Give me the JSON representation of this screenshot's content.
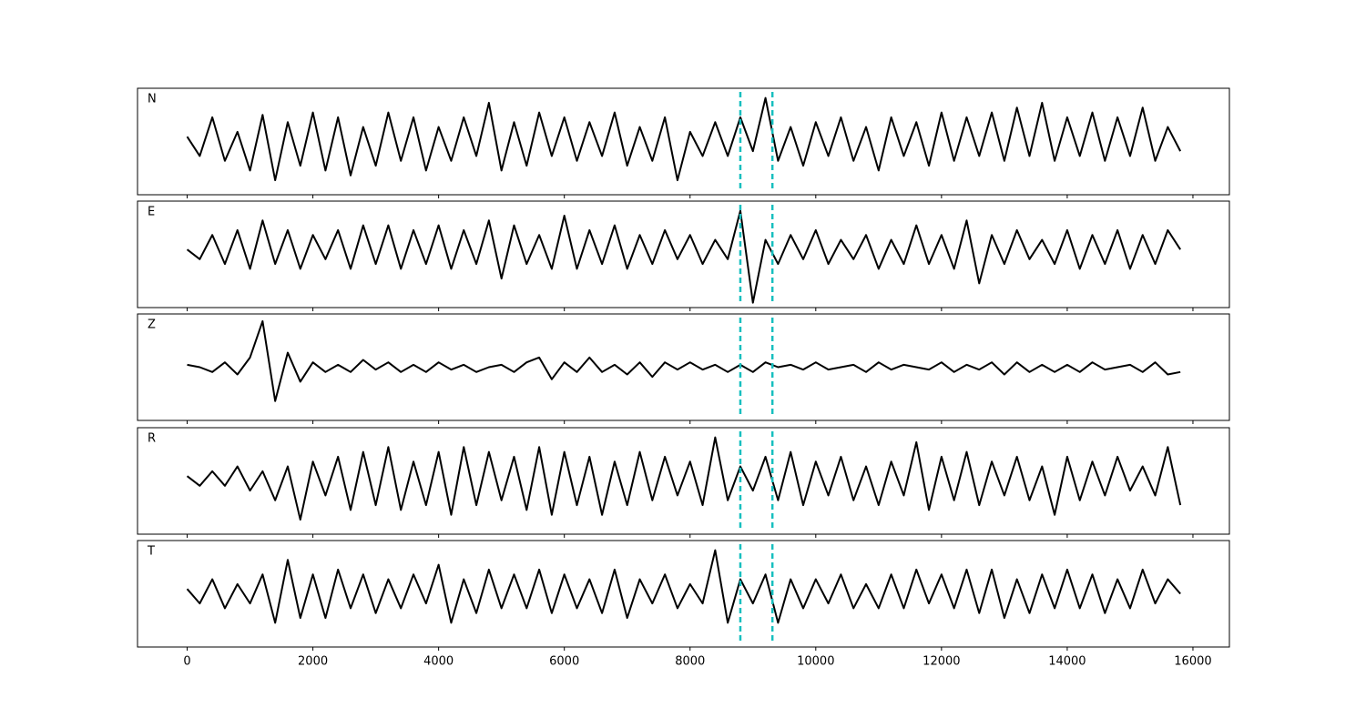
{
  "chart_data": [
    {
      "type": "line",
      "label": "N",
      "color": "#000000",
      "xlim": [
        -790,
        16580
      ],
      "ylim": [
        -1.1,
        1.1
      ],
      "vlines": [
        8800,
        9310
      ],
      "vline_color": "#17bfbf",
      "x": [
        0,
        200,
        400,
        600,
        800,
        1000,
        1200,
        1400,
        1600,
        1800,
        2000,
        2200,
        2400,
        2600,
        2800,
        3000,
        3200,
        3400,
        3600,
        3800,
        4000,
        4200,
        4400,
        4600,
        4800,
        5000,
        5200,
        5400,
        5600,
        5800,
        6000,
        6200,
        6400,
        6600,
        6800,
        7000,
        7200,
        7400,
        7600,
        7800,
        8000,
        8200,
        8400,
        8600,
        8800,
        9000,
        9200,
        9400,
        9600,
        9800,
        10000,
        10200,
        10400,
        10600,
        10800,
        11000,
        11200,
        11400,
        11600,
        11800,
        12000,
        12200,
        12400,
        12600,
        12800,
        13000,
        13200,
        13400,
        13600,
        13800,
        14000,
        14200,
        14400,
        14600,
        14800,
        15000,
        15200,
        15400,
        15600,
        15800
      ],
      "values": [
        0.1,
        -0.3,
        0.5,
        -0.4,
        0.2,
        -0.6,
        0.55,
        -0.8,
        0.4,
        -0.5,
        0.6,
        -0.6,
        0.5,
        -0.7,
        0.3,
        -0.5,
        0.6,
        -0.4,
        0.5,
        -0.6,
        0.3,
        -0.4,
        0.5,
        -0.3,
        0.8,
        -0.6,
        0.4,
        -0.5,
        0.6,
        -0.3,
        0.5,
        -0.4,
        0.4,
        -0.3,
        0.6,
        -0.5,
        0.3,
        -0.4,
        0.5,
        -0.8,
        0.2,
        -0.3,
        0.4,
        -0.3,
        0.5,
        -0.2,
        0.9,
        -0.4,
        0.3,
        -0.5,
        0.4,
        -0.3,
        0.5,
        -0.4,
        0.3,
        -0.6,
        0.5,
        -0.3,
        0.4,
        -0.5,
        0.6,
        -0.4,
        0.5,
        -0.3,
        0.6,
        -0.4,
        0.7,
        -0.3,
        0.8,
        -0.4,
        0.5,
        -0.3,
        0.6,
        -0.4,
        0.5,
        -0.3,
        0.7,
        -0.4,
        0.3,
        -0.2
      ]
    },
    {
      "type": "line",
      "label": "E",
      "color": "#000000",
      "xlim": [
        -790,
        16580
      ],
      "ylim": [
        -1.1,
        1.1
      ],
      "vlines": [
        8800,
        9310
      ],
      "vline_color": "#17bfbf",
      "x": [
        0,
        200,
        400,
        600,
        800,
        1000,
        1200,
        1400,
        1600,
        1800,
        2000,
        2200,
        2400,
        2600,
        2800,
        3000,
        3200,
        3400,
        3600,
        3800,
        4000,
        4200,
        4400,
        4600,
        4800,
        5000,
        5200,
        5400,
        5600,
        5800,
        6000,
        6200,
        6400,
        6600,
        6800,
        7000,
        7200,
        7400,
        7600,
        7800,
        8000,
        8200,
        8400,
        8600,
        8800,
        9000,
        9200,
        9400,
        9600,
        9800,
        10000,
        10200,
        10400,
        10600,
        10800,
        11000,
        11200,
        11400,
        11600,
        11800,
        12000,
        12200,
        12400,
        12600,
        12800,
        13000,
        13200,
        13400,
        13600,
        13800,
        14000,
        14200,
        14400,
        14600,
        14800,
        15000,
        15200,
        15400,
        15600,
        15800
      ],
      "values": [
        0.1,
        -0.1,
        0.4,
        -0.2,
        0.5,
        -0.3,
        0.7,
        -0.2,
        0.5,
        -0.3,
        0.4,
        -0.1,
        0.5,
        -0.3,
        0.6,
        -0.2,
        0.6,
        -0.3,
        0.5,
        -0.2,
        0.6,
        -0.3,
        0.5,
        -0.2,
        0.7,
        -0.5,
        0.6,
        -0.2,
        0.4,
        -0.3,
        0.8,
        -0.3,
        0.5,
        -0.2,
        0.6,
        -0.3,
        0.4,
        -0.2,
        0.5,
        -0.1,
        0.4,
        -0.2,
        0.3,
        -0.1,
        0.9,
        -1.0,
        0.3,
        -0.2,
        0.4,
        -0.1,
        0.5,
        -0.2,
        0.3,
        -0.1,
        0.4,
        -0.3,
        0.3,
        -0.2,
        0.6,
        -0.2,
        0.4,
        -0.3,
        0.7,
        -0.6,
        0.4,
        -0.2,
        0.5,
        -0.1,
        0.3,
        -0.2,
        0.5,
        -0.3,
        0.4,
        -0.2,
        0.5,
        -0.3,
        0.4,
        -0.2,
        0.5,
        0.1
      ]
    },
    {
      "type": "line",
      "label": "Z",
      "color": "#000000",
      "xlim": [
        -790,
        16580
      ],
      "ylim": [
        -1.1,
        1.1
      ],
      "vlines": [
        8800,
        9310
      ],
      "vline_color": "#17bfbf",
      "x": [
        0,
        200,
        400,
        600,
        800,
        1000,
        1200,
        1400,
        1600,
        1800,
        2000,
        2200,
        2400,
        2600,
        2800,
        3000,
        3200,
        3400,
        3600,
        3800,
        4000,
        4200,
        4400,
        4600,
        4800,
        5000,
        5200,
        5400,
        5600,
        5800,
        6000,
        6200,
        6400,
        6600,
        6800,
        7000,
        7200,
        7400,
        7600,
        7800,
        8000,
        8200,
        8400,
        8600,
        8800,
        9000,
        9200,
        9400,
        9600,
        9800,
        10000,
        10200,
        10400,
        10600,
        10800,
        11000,
        11200,
        11400,
        11600,
        11800,
        12000,
        12200,
        12400,
        12600,
        12800,
        13000,
        13200,
        13400,
        13600,
        13800,
        14000,
        14200,
        14400,
        14600,
        14800,
        15000,
        15200,
        15400,
        15600,
        15800
      ],
      "values": [
        0.05,
        0.0,
        -0.1,
        0.1,
        -0.15,
        0.2,
        0.95,
        -0.7,
        0.3,
        -0.3,
        0.1,
        -0.1,
        0.05,
        -0.1,
        0.15,
        -0.05,
        0.1,
        -0.1,
        0.05,
        -0.1,
        0.1,
        -0.05,
        0.05,
        -0.1,
        0.0,
        0.05,
        -0.1,
        0.1,
        0.2,
        -0.25,
        0.1,
        -0.1,
        0.2,
        -0.1,
        0.05,
        -0.15,
        0.1,
        -0.2,
        0.1,
        -0.05,
        0.1,
        -0.05,
        0.05,
        -0.1,
        0.05,
        -0.1,
        0.1,
        0.0,
        0.05,
        -0.05,
        0.1,
        -0.05,
        0.0,
        0.05,
        -0.1,
        0.1,
        -0.05,
        0.05,
        0.0,
        -0.05,
        0.1,
        -0.1,
        0.05,
        -0.05,
        0.1,
        -0.15,
        0.1,
        -0.1,
        0.05,
        -0.1,
        0.05,
        -0.1,
        0.1,
        -0.05,
        0.0,
        0.05,
        -0.1,
        0.1,
        -0.15,
        -0.1
      ]
    },
    {
      "type": "line",
      "label": "R",
      "color": "#000000",
      "xlim": [
        -790,
        16580
      ],
      "ylim": [
        -1.1,
        1.1
      ],
      "vlines": [
        8800,
        9310
      ],
      "vline_color": "#17bfbf",
      "x": [
        0,
        200,
        400,
        600,
        800,
        1000,
        1200,
        1400,
        1600,
        1800,
        2000,
        2200,
        2400,
        2600,
        2800,
        3000,
        3200,
        3400,
        3600,
        3800,
        4000,
        4200,
        4400,
        4600,
        4800,
        5000,
        5200,
        5400,
        5600,
        5800,
        6000,
        6200,
        6400,
        6600,
        6800,
        7000,
        7200,
        7400,
        7600,
        7800,
        8000,
        8200,
        8400,
        8600,
        8800,
        9000,
        9200,
        9400,
        9600,
        9800,
        10000,
        10200,
        10400,
        10600,
        10800,
        11000,
        11200,
        11400,
        11600,
        11800,
        12000,
        12200,
        12400,
        12600,
        12800,
        13000,
        13200,
        13400,
        13600,
        13800,
        14000,
        14200,
        14400,
        14600,
        14800,
        15000,
        15200,
        15400,
        15600,
        15800
      ],
      "values": [
        0.1,
        -0.1,
        0.2,
        -0.1,
        0.3,
        -0.2,
        0.2,
        -0.4,
        0.3,
        -0.8,
        0.4,
        -0.3,
        0.5,
        -0.6,
        0.6,
        -0.5,
        0.7,
        -0.6,
        0.4,
        -0.5,
        0.6,
        -0.7,
        0.7,
        -0.5,
        0.6,
        -0.4,
        0.5,
        -0.6,
        0.7,
        -0.7,
        0.6,
        -0.5,
        0.5,
        -0.7,
        0.4,
        -0.5,
        0.6,
        -0.4,
        0.5,
        -0.3,
        0.4,
        -0.5,
        0.9,
        -0.4,
        0.3,
        -0.2,
        0.5,
        -0.4,
        0.6,
        -0.5,
        0.4,
        -0.3,
        0.5,
        -0.4,
        0.3,
        -0.5,
        0.4,
        -0.3,
        0.8,
        -0.6,
        0.5,
        -0.4,
        0.6,
        -0.5,
        0.4,
        -0.3,
        0.5,
        -0.4,
        0.3,
        -0.7,
        0.5,
        -0.4,
        0.4,
        -0.3,
        0.5,
        -0.2,
        0.3,
        -0.3,
        0.7,
        -0.5
      ]
    },
    {
      "type": "line",
      "label": "T",
      "color": "#000000",
      "xlim": [
        -790,
        16580
      ],
      "ylim": [
        -1.1,
        1.1
      ],
      "vlines": [
        8800,
        9310
      ],
      "vline_color": "#17bfbf",
      "xticks": [
        0,
        2000,
        4000,
        6000,
        8000,
        10000,
        12000,
        14000,
        16000
      ],
      "x": [
        0,
        200,
        400,
        600,
        800,
        1000,
        1200,
        1400,
        1600,
        1800,
        2000,
        2200,
        2400,
        2600,
        2800,
        3000,
        3200,
        3400,
        3600,
        3800,
        4000,
        4200,
        4400,
        4600,
        4800,
        5000,
        5200,
        5400,
        5600,
        5800,
        6000,
        6200,
        6400,
        6600,
        6800,
        7000,
        7200,
        7400,
        7600,
        7800,
        8000,
        8200,
        8400,
        8600,
        8800,
        9000,
        9200,
        9400,
        9600,
        9800,
        10000,
        10200,
        10400,
        10600,
        10800,
        11000,
        11200,
        11400,
        11600,
        11800,
        12000,
        12200,
        12400,
        12600,
        12800,
        13000,
        13200,
        13400,
        13600,
        13800,
        14000,
        14200,
        14400,
        14600,
        14800,
        15000,
        15200,
        15400,
        15600,
        15800
      ],
      "values": [
        0.1,
        -0.2,
        0.3,
        -0.3,
        0.2,
        -0.2,
        0.4,
        -0.6,
        0.7,
        -0.5,
        0.4,
        -0.5,
        0.5,
        -0.3,
        0.4,
        -0.4,
        0.3,
        -0.3,
        0.4,
        -0.2,
        0.6,
        -0.6,
        0.3,
        -0.4,
        0.5,
        -0.3,
        0.4,
        -0.3,
        0.5,
        -0.4,
        0.4,
        -0.3,
        0.3,
        -0.4,
        0.5,
        -0.5,
        0.3,
        -0.2,
        0.4,
        -0.3,
        0.2,
        -0.2,
        0.9,
        -0.6,
        0.3,
        -0.2,
        0.4,
        -0.6,
        0.3,
        -0.3,
        0.3,
        -0.2,
        0.4,
        -0.3,
        0.2,
        -0.3,
        0.4,
        -0.3,
        0.5,
        -0.2,
        0.4,
        -0.3,
        0.5,
        -0.4,
        0.5,
        -0.5,
        0.3,
        -0.4,
        0.4,
        -0.3,
        0.5,
        -0.3,
        0.4,
        -0.4,
        0.3,
        -0.3,
        0.5,
        -0.2,
        0.3,
        0.0
      ]
    }
  ]
}
